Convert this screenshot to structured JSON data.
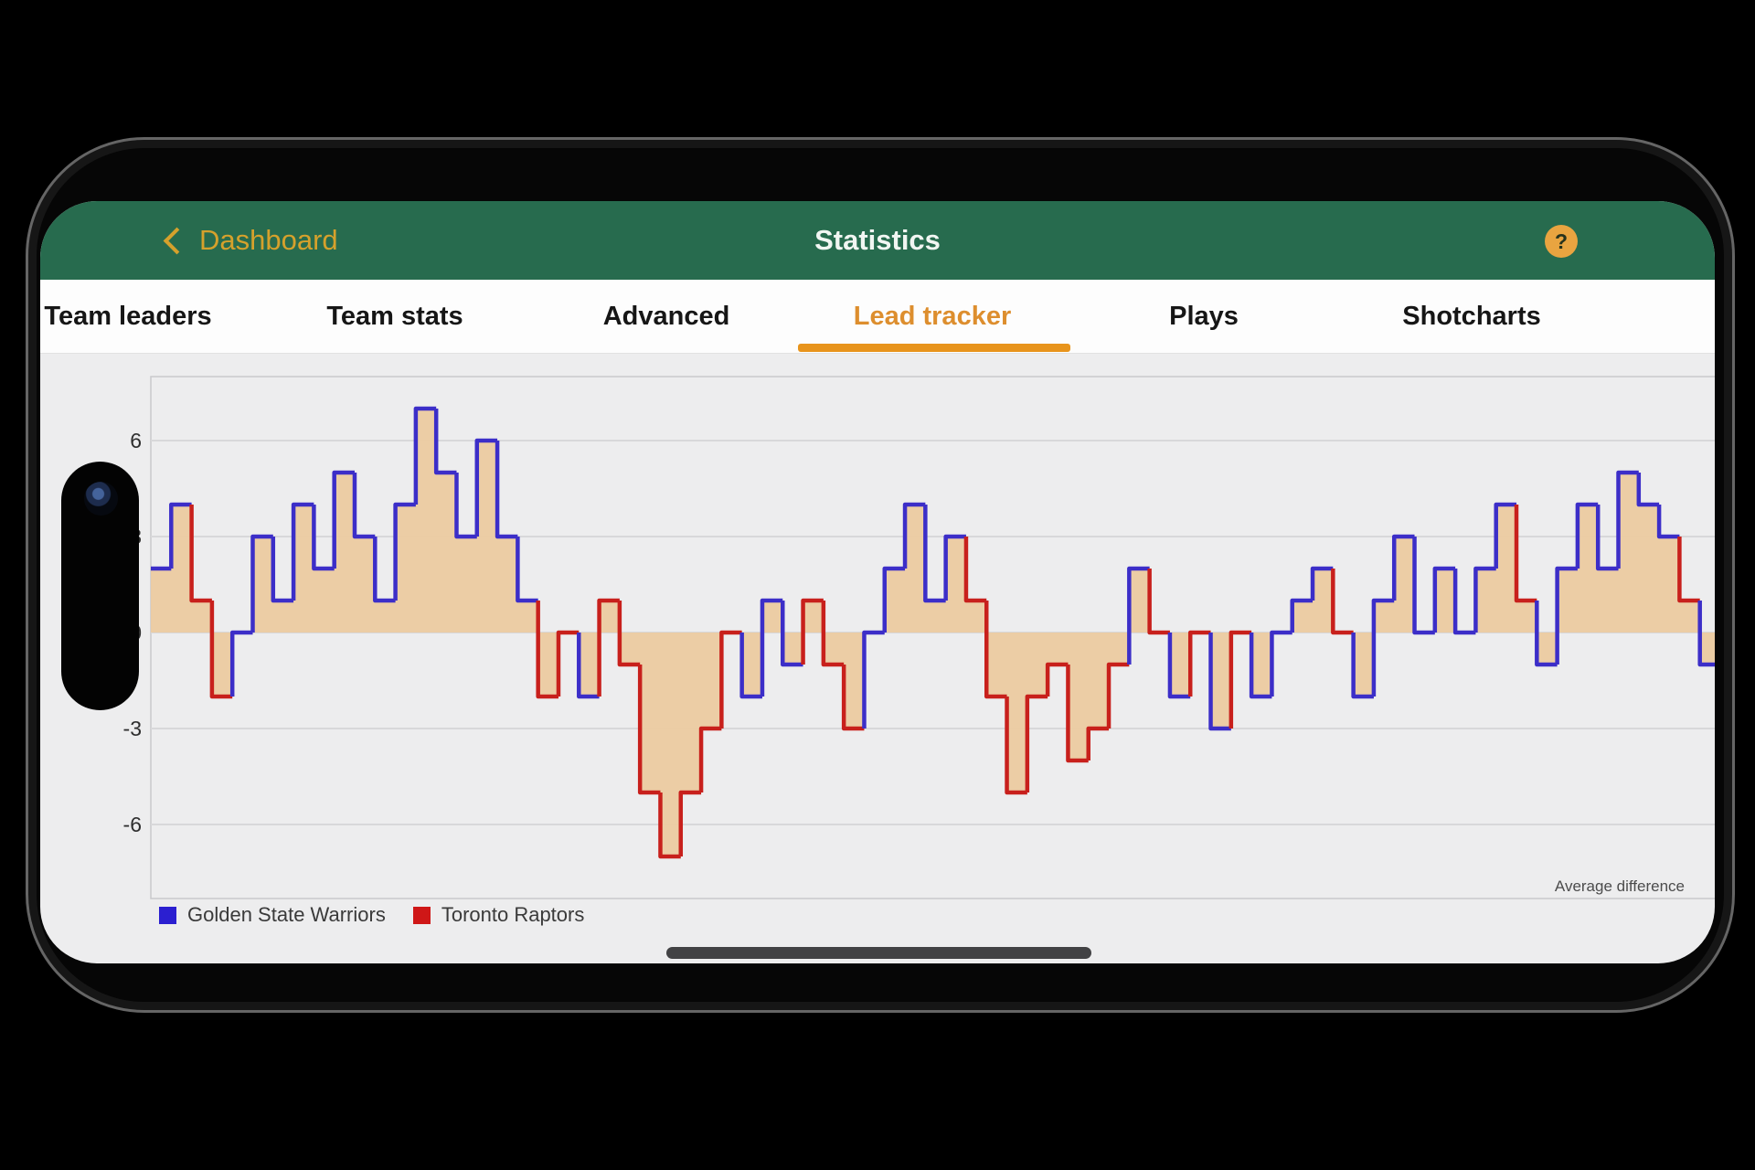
{
  "header": {
    "back_label": "Dashboard",
    "title": "Statistics",
    "help_label": "?"
  },
  "tabs": {
    "items": [
      {
        "label": "Team leaders",
        "active": false
      },
      {
        "label": "Team stats",
        "active": false
      },
      {
        "label": "Advanced",
        "active": false
      },
      {
        "label": "Lead tracker",
        "active": true
      },
      {
        "label": "Plays",
        "active": false
      },
      {
        "label": "Shotcharts",
        "active": false
      }
    ]
  },
  "colors": {
    "header_green": "#276B4E",
    "gold": "#D5A12C",
    "active_tab_orange": "#DD8E2E",
    "underline_orange": "#E8941C",
    "chart_background": "#EDEDEE"
  },
  "chart_data": {
    "type": "area",
    "subtype": "step-lead-tracker",
    "annotation": "Average difference",
    "yticks": [
      6,
      3,
      0,
      -3,
      -6
    ],
    "ylim": [
      -8,
      8
    ],
    "grid": true,
    "legend_position": "bottom-left",
    "fill_color": "#ECCA9F",
    "teams": {
      "GSW": {
        "label": "Golden State Warriors",
        "line_color": "#3C2EC8",
        "legend_color": "#2B1FD0"
      },
      "TOR": {
        "label": "Toronto Raptors",
        "line_color": "#C8201C",
        "legend_color": "#CF1717"
      }
    },
    "series": [
      {
        "name": "Average difference",
        "values": [
          2,
          4,
          1,
          -2,
          0,
          3,
          1,
          4,
          2,
          5,
          3,
          1,
          4,
          7,
          5,
          3,
          6,
          3,
          1,
          -2,
          0,
          -2,
          1,
          -1,
          -5,
          -7,
          -5,
          -3,
          0,
          -2,
          1,
          -1,
          1,
          -1,
          -3,
          0,
          2,
          4,
          1,
          3,
          1,
          -2,
          -5,
          -2,
          -1,
          -4,
          -3,
          -1,
          2,
          0,
          -2,
          0,
          -3,
          0,
          -2,
          0,
          1,
          2,
          0,
          -2,
          1,
          3,
          0,
          2,
          0,
          2,
          4,
          1,
          -1,
          2,
          4,
          2,
          5,
          4,
          3,
          1,
          -1
        ],
        "segment_team": [
          "GSW",
          "GSW",
          "TOR",
          "TOR",
          "GSW",
          "GSW",
          "GSW",
          "GSW",
          "GSW",
          "GSW",
          "GSW",
          "GSW",
          "GSW",
          "GSW",
          "GSW",
          "GSW",
          "GSW",
          "GSW",
          "GSW",
          "TOR",
          "TOR",
          "GSW",
          "TOR",
          "TOR",
          "TOR",
          "TOR",
          "TOR",
          "TOR",
          "TOR",
          "GSW",
          "GSW",
          "GSW",
          "TOR",
          "TOR",
          "TOR",
          "GSW",
          "GSW",
          "GSW",
          "GSW",
          "GSW",
          "TOR",
          "TOR",
          "TOR",
          "TOR",
          "TOR",
          "TOR",
          "TOR",
          "TOR",
          "GSW",
          "TOR",
          "GSW",
          "TOR",
          "GSW",
          "TOR",
          "GSW",
          "GSW",
          "GSW",
          "GSW",
          "TOR",
          "GSW",
          "GSW",
          "GSW",
          "GSW",
          "GSW",
          "GSW",
          "GSW",
          "GSW",
          "TOR",
          "GSW",
          "GSW",
          "GSW",
          "GSW",
          "GSW",
          "GSW",
          "GSW",
          "TOR",
          "GSW"
        ]
      }
    ]
  },
  "footer": {
    "home_indicator": "handle"
  }
}
